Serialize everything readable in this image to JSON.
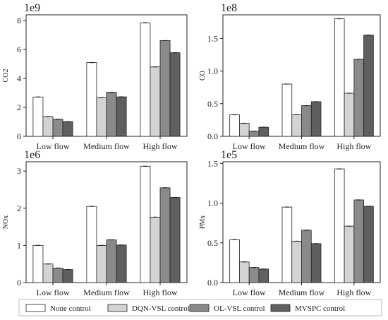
{
  "colors": {
    "none": "#ffffff",
    "dqn": "#d3d3d3",
    "ol": "#8a8a8a",
    "mvspc": "#5f5f5f",
    "stroke": "#222222"
  },
  "legend": {
    "entries": [
      "None control",
      "DQN-VSL control",
      "OL-VSL control",
      "MVSPC control"
    ],
    "placement": "bottom"
  },
  "chart_data": [
    {
      "type": "bar",
      "categories": [
        "Low flow",
        "Medium flow",
        "High flow"
      ],
      "ylabel": "CO2",
      "exponent": "1e9",
      "ylim": [
        0,
        8.4
      ],
      "yticks": [
        0,
        2,
        4,
        6,
        8
      ],
      "grid": false,
      "series": [
        {
          "name": "None control",
          "values": [
            2.72,
            5.1,
            7.85
          ]
        },
        {
          "name": "DQN-VSL control",
          "values": [
            1.37,
            2.68,
            4.8
          ]
        },
        {
          "name": "OL-VSL control",
          "values": [
            1.18,
            3.05,
            6.62
          ]
        },
        {
          "name": "MVSPC control",
          "values": [
            1.02,
            2.73,
            5.78
          ]
        }
      ]
    },
    {
      "type": "bar",
      "categories": [
        "Low flow",
        "Medium flow",
        "High flow"
      ],
      "ylabel": "CO",
      "exponent": "1e8",
      "ylim": [
        0,
        1.86
      ],
      "yticks": [
        0.0,
        0.5,
        1.0,
        1.5
      ],
      "grid": false,
      "series": [
        {
          "name": "None control",
          "values": [
            0.33,
            0.8,
            1.8
          ]
        },
        {
          "name": "DQN-VSL control",
          "values": [
            0.2,
            0.33,
            0.66
          ]
        },
        {
          "name": "OL-VSL control",
          "values": [
            0.08,
            0.47,
            1.18
          ]
        },
        {
          "name": "MVSPC control",
          "values": [
            0.14,
            0.53,
            1.55
          ]
        }
      ]
    },
    {
      "type": "bar",
      "categories": [
        "Low flow",
        "Medium flow",
        "High flow"
      ],
      "ylabel": "NOx",
      "exponent": "1e6",
      "ylim": [
        0,
        3.25
      ],
      "yticks": [
        0,
        1,
        2,
        3
      ],
      "grid": false,
      "series": [
        {
          "name": "None control",
          "values": [
            1.0,
            2.05,
            3.13
          ]
        },
        {
          "name": "DQN-VSL control",
          "values": [
            0.5,
            1.0,
            1.76
          ]
        },
        {
          "name": "OL-VSL control",
          "values": [
            0.39,
            1.15,
            2.55
          ]
        },
        {
          "name": "MVSPC control",
          "values": [
            0.35,
            1.01,
            2.29
          ]
        }
      ]
    },
    {
      "type": "bar",
      "categories": [
        "Low flow",
        "Medium flow",
        "High flow"
      ],
      "ylabel": "PMx",
      "exponent": "1e5",
      "ylim": [
        0,
        1.52
      ],
      "yticks": [
        0.0,
        0.5,
        1.0,
        1.5
      ],
      "grid": false,
      "series": [
        {
          "name": "None control",
          "values": [
            0.54,
            0.95,
            1.43
          ]
        },
        {
          "name": "DQN-VSL control",
          "values": [
            0.26,
            0.52,
            0.71
          ]
        },
        {
          "name": "OL-VSL control",
          "values": [
            0.19,
            0.66,
            1.04
          ]
        },
        {
          "name": "MVSPC control",
          "values": [
            0.17,
            0.49,
            0.96
          ]
        }
      ]
    }
  ]
}
